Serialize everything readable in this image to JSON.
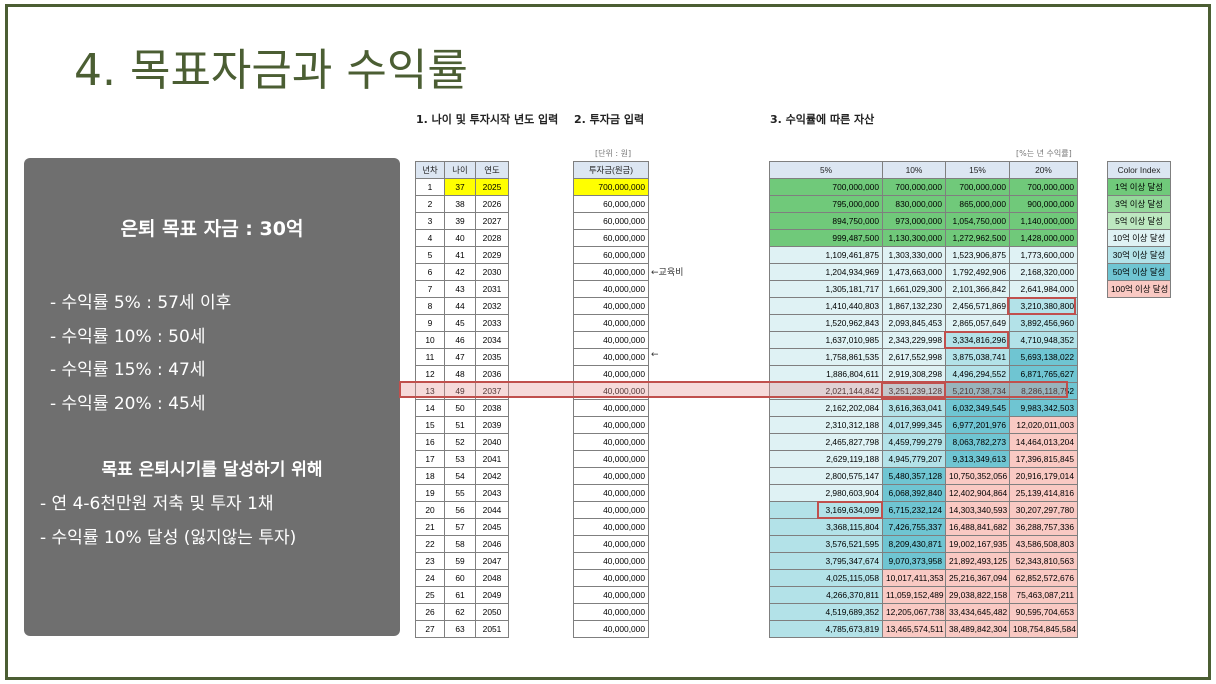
{
  "title": "4. 목표자금과 수익률",
  "panel": {
    "heading": "은퇴 목표 자금 : 30억",
    "rates": [
      "- 수익률   5% : 57세 이후",
      "- 수익률 10% : 50세",
      "- 수익률 15% : 47세",
      "- 수익률 20% : 45세"
    ],
    "subheading": "목표 은퇴시기를 달성하기 위해",
    "actions": [
      "- 연 4-6천만원 저축 및 투자 1채",
      "- 수익률 10% 달성 (잃지않는 투자)"
    ]
  },
  "sections": {
    "s1": "1. 나이 및 투자시작 년도 입력",
    "s2": "2. 투자금 입력",
    "s3": "3. 수익률에 따른 자산"
  },
  "notes": {
    "unit": "[단위 : 원]",
    "rate_note": "[%는 년 수익률]",
    "memo_edu": "←교육비",
    "memo_arrow": "←"
  },
  "table1": {
    "headers": [
      "년차",
      "나이",
      "연도"
    ],
    "rows": [
      [
        "1",
        "37",
        "2025"
      ],
      [
        "2",
        "38",
        "2026"
      ],
      [
        "3",
        "39",
        "2027"
      ],
      [
        "4",
        "40",
        "2028"
      ],
      [
        "5",
        "41",
        "2029"
      ],
      [
        "6",
        "42",
        "2030"
      ],
      [
        "7",
        "43",
        "2031"
      ],
      [
        "8",
        "44",
        "2032"
      ],
      [
        "9",
        "45",
        "2033"
      ],
      [
        "10",
        "46",
        "2034"
      ],
      [
        "11",
        "47",
        "2035"
      ],
      [
        "12",
        "48",
        "2036"
      ],
      [
        "13",
        "49",
        "2037"
      ],
      [
        "14",
        "50",
        "2038"
      ],
      [
        "15",
        "51",
        "2039"
      ],
      [
        "16",
        "52",
        "2040"
      ],
      [
        "17",
        "53",
        "2041"
      ],
      [
        "18",
        "54",
        "2042"
      ],
      [
        "19",
        "55",
        "2043"
      ],
      [
        "20",
        "56",
        "2044"
      ],
      [
        "21",
        "57",
        "2045"
      ],
      [
        "22",
        "58",
        "2046"
      ],
      [
        "23",
        "59",
        "2047"
      ],
      [
        "24",
        "60",
        "2048"
      ],
      [
        "25",
        "61",
        "2049"
      ],
      [
        "26",
        "62",
        "2050"
      ],
      [
        "27",
        "63",
        "2051"
      ]
    ]
  },
  "table2": {
    "header": "투자금(원금)",
    "values": [
      "700,000,000",
      "60,000,000",
      "60,000,000",
      "60,000,000",
      "60,000,000",
      "40,000,000",
      "40,000,000",
      "40,000,000",
      "40,000,000",
      "40,000,000",
      "40,000,000",
      "40,000,000",
      "40,000,000",
      "40,000,000",
      "40,000,000",
      "40,000,000",
      "40,000,000",
      "40,000,000",
      "40,000,000",
      "40,000,000",
      "40,000,000",
      "40,000,000",
      "40,000,000",
      "40,000,000",
      "40,000,000",
      "40,000,000",
      "40,000,000"
    ]
  },
  "table3": {
    "headers": [
      "5%",
      "10%",
      "15%",
      "20%"
    ],
    "rows": [
      [
        "700,000,000",
        "700,000,000",
        "700,000,000",
        "700,000,000"
      ],
      [
        "795,000,000",
        "830,000,000",
        "865,000,000",
        "900,000,000"
      ],
      [
        "894,750,000",
        "973,000,000",
        "1,054,750,000",
        "1,140,000,000"
      ],
      [
        "999,487,500",
        "1,130,300,000",
        "1,272,962,500",
        "1,428,000,000"
      ],
      [
        "1,109,461,875",
        "1,303,330,000",
        "1,523,906,875",
        "1,773,600,000"
      ],
      [
        "1,204,934,969",
        "1,473,663,000",
        "1,792,492,906",
        "2,168,320,000"
      ],
      [
        "1,305,181,717",
        "1,661,029,300",
        "2,101,366,842",
        "2,641,984,000"
      ],
      [
        "1,410,440,803",
        "1,867,132,230",
        "2,456,571,869",
        "3,210,380,800"
      ],
      [
        "1,520,962,843",
        "2,093,845,453",
        "2,865,057,649",
        "3,892,456,960"
      ],
      [
        "1,637,010,985",
        "2,343,229,998",
        "3,334,816,296",
        "4,710,948,352"
      ],
      [
        "1,758,861,535",
        "2,617,552,998",
        "3,875,038,741",
        "5,693,138,022"
      ],
      [
        "1,886,804,611",
        "2,919,308,298",
        "4,496,294,552",
        "6,871,765,627"
      ],
      [
        "2,021,144,842",
        "3,251,239,128",
        "5,210,738,734",
        "8,286,118,752"
      ],
      [
        "2,162,202,084",
        "3,616,363,041",
        "6,032,349,545",
        "9,983,342,503"
      ],
      [
        "2,310,312,188",
        "4,017,999,345",
        "6,977,201,976",
        "12,020,011,003"
      ],
      [
        "2,465,827,798",
        "4,459,799,279",
        "8,063,782,273",
        "14,464,013,204"
      ],
      [
        "2,629,119,188",
        "4,945,779,207",
        "9,313,349,613",
        "17,396,815,845"
      ],
      [
        "2,800,575,147",
        "5,480,357,128",
        "10,750,352,056",
        "20,916,179,014"
      ],
      [
        "2,980,603,904",
        "6,068,392,840",
        "12,402,904,864",
        "25,139,414,816"
      ],
      [
        "3,169,634,099",
        "6,715,232,124",
        "14,303,340,593",
        "30,207,297,780"
      ],
      [
        "3,368,115,804",
        "7,426,755,337",
        "16,488,841,682",
        "36,288,757,336"
      ],
      [
        "3,576,521,595",
        "8,209,430,871",
        "19,002,167,935",
        "43,586,508,803"
      ],
      [
        "3,795,347,674",
        "9,070,373,958",
        "21,892,493,125",
        "52,343,810,563"
      ],
      [
        "4,025,115,058",
        "10,017,411,353",
        "25,216,367,094",
        "62,852,572,676"
      ],
      [
        "4,266,370,811",
        "11,059,152,489",
        "29,038,822,158",
        "75,463,087,211"
      ],
      [
        "4,519,689,352",
        "12,205,067,738",
        "33,434,645,482",
        "90,595,704,653"
      ],
      [
        "4,785,673,819",
        "13,465,574,511",
        "38,489,842,304",
        "108,754,845,584"
      ]
    ]
  },
  "legend": {
    "header": "Color Index",
    "items": [
      "1억 이상 달성",
      "3억 이상 달성",
      "5억 이상 달성",
      "10억 이상 달성",
      "30억 이상 달성",
      "50억 이상 달성",
      "100억 이상 달성"
    ]
  },
  "colors": {
    "title": "#4b5e33",
    "panel": "#6f6f6f",
    "tier_1": "#70c97a",
    "tier_3": "#95d89b",
    "tier_5": "#bde8c0",
    "tier_10": "#dff2f4",
    "tier_30": "#b3e2e8",
    "tier_50": "#6fc5d2",
    "tier_100": "#f9c9c3",
    "highlight": "#c0504d"
  }
}
